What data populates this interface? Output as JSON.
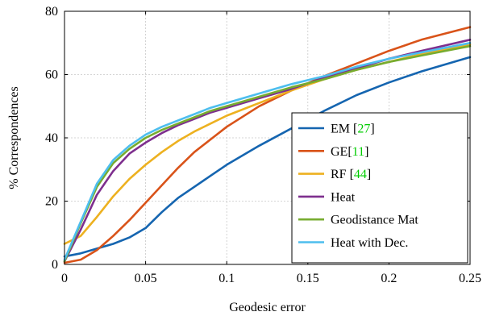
{
  "chart_data": {
    "type": "line",
    "title": "",
    "xlabel": "Geodesic error",
    "ylabel": "% Correspondences",
    "xlim": [
      0,
      0.25
    ],
    "ylim": [
      0,
      80
    ],
    "x_ticks": [
      0,
      0.05,
      0.1,
      0.15,
      0.2,
      0.25
    ],
    "x_tick_labels": [
      "0",
      "0.05",
      "0.1",
      "0.15",
      "0.2",
      "0.25"
    ],
    "y_ticks": [
      0,
      20,
      40,
      60,
      80
    ],
    "y_tick_labels": [
      "0",
      "20",
      "40",
      "60",
      "80"
    ],
    "grid": true,
    "legend_position": "bottom-right",
    "series": [
      {
        "name": "EM",
        "cite": "27",
        "color": "#1565b0",
        "x": [
          0,
          0.01,
          0.02,
          0.03,
          0.04,
          0.05,
          0.06,
          0.07,
          0.08,
          0.09,
          0.1,
          0.12,
          0.14,
          0.16,
          0.18,
          0.2,
          0.22,
          0.25
        ],
        "y": [
          2.5,
          3.5,
          5,
          6.5,
          8.5,
          11.5,
          16.5,
          21,
          24.5,
          28,
          31.5,
          37.5,
          43,
          48.5,
          53.5,
          57.5,
          61,
          65.5
        ]
      },
      {
        "name": "GE",
        "cite": "11",
        "color": "#d95319",
        "x": [
          0,
          0.01,
          0.02,
          0.03,
          0.04,
          0.05,
          0.06,
          0.07,
          0.08,
          0.09,
          0.1,
          0.12,
          0.14,
          0.16,
          0.18,
          0.2,
          0.22,
          0.25
        ],
        "y": [
          0.5,
          1.5,
          4.5,
          9,
          14,
          19.5,
          25,
          30.5,
          35.5,
          39.5,
          43.5,
          50,
          55,
          59.5,
          63.5,
          67.5,
          71,
          75
        ]
      },
      {
        "name": "RF",
        "cite": "44",
        "color": "#edb120",
        "x": [
          0,
          0.01,
          0.02,
          0.03,
          0.04,
          0.05,
          0.06,
          0.07,
          0.08,
          0.09,
          0.1,
          0.12,
          0.14,
          0.16,
          0.18,
          0.2,
          0.22,
          0.25
        ],
        "y": [
          6.5,
          9,
          15,
          21.5,
          27,
          31.5,
          35.5,
          39,
          42,
          44.5,
          47,
          51,
          55,
          58.5,
          61.5,
          64,
          66.5,
          69.5
        ]
      },
      {
        "name": "Heat",
        "cite": "",
        "color": "#7e2f8e",
        "x": [
          0,
          0.01,
          0.02,
          0.03,
          0.04,
          0.05,
          0.06,
          0.07,
          0.08,
          0.09,
          0.1,
          0.12,
          0.14,
          0.16,
          0.18,
          0.2,
          0.22,
          0.25
        ],
        "y": [
          1,
          11,
          22,
          29.5,
          35,
          38.5,
          41.5,
          44,
          46,
          48,
          49.5,
          52.5,
          55.5,
          59,
          62,
          65,
          67.5,
          71
        ]
      },
      {
        "name": "Geodistance Mat",
        "cite": "",
        "color": "#77ac30",
        "x": [
          0,
          0.01,
          0.02,
          0.03,
          0.04,
          0.05,
          0.06,
          0.07,
          0.08,
          0.09,
          0.1,
          0.12,
          0.14,
          0.16,
          0.18,
          0.2,
          0.22,
          0.25
        ],
        "y": [
          1,
          13,
          24.5,
          32,
          36.5,
          40,
          42.5,
          44.5,
          46.5,
          48.5,
          50,
          53,
          56,
          58.5,
          61.5,
          64,
          66,
          69
        ]
      },
      {
        "name": "Heat with Dec.",
        "cite": "",
        "color": "#4dbeee",
        "x": [
          0,
          0.01,
          0.02,
          0.03,
          0.04,
          0.05,
          0.06,
          0.07,
          0.08,
          0.09,
          0.1,
          0.12,
          0.14,
          0.16,
          0.18,
          0.2,
          0.22,
          0.25
        ],
        "y": [
          1.5,
          13.5,
          25.5,
          33,
          37.5,
          41,
          43.5,
          45.5,
          47.5,
          49.5,
          51,
          54,
          57,
          59.5,
          62.5,
          65,
          67,
          70
        ]
      }
    ]
  }
}
